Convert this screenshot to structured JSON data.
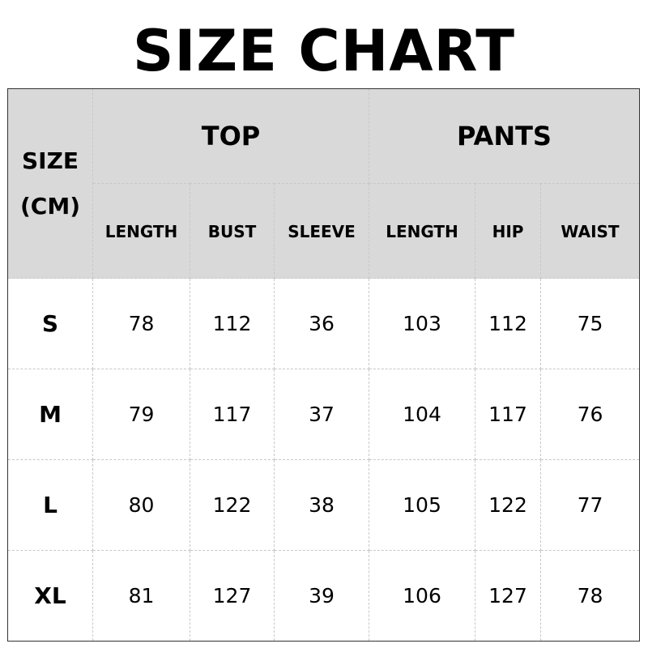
{
  "title": "SIZE CHART",
  "header": {
    "size_label_line1": "SIZE",
    "size_label_line2": "(CM)",
    "groups": [
      "TOP",
      "PANTS"
    ],
    "columns": [
      "LENGTH",
      "BUST",
      "SLEEVE",
      "LENGTH",
      "HIP",
      "WAIST"
    ]
  },
  "rows": [
    {
      "size": "S",
      "values": [
        "78",
        "112",
        "36",
        "103",
        "112",
        "75"
      ]
    },
    {
      "size": "M",
      "values": [
        "79",
        "117",
        "37",
        "104",
        "117",
        "76"
      ]
    },
    {
      "size": "L",
      "values": [
        "80",
        "122",
        "38",
        "105",
        "122",
        "77"
      ]
    },
    {
      "size": "XL",
      "values": [
        "81",
        "127",
        "39",
        "106",
        "127",
        "78"
      ]
    }
  ],
  "colors": {
    "header_bg": "#d9d9d9"
  }
}
